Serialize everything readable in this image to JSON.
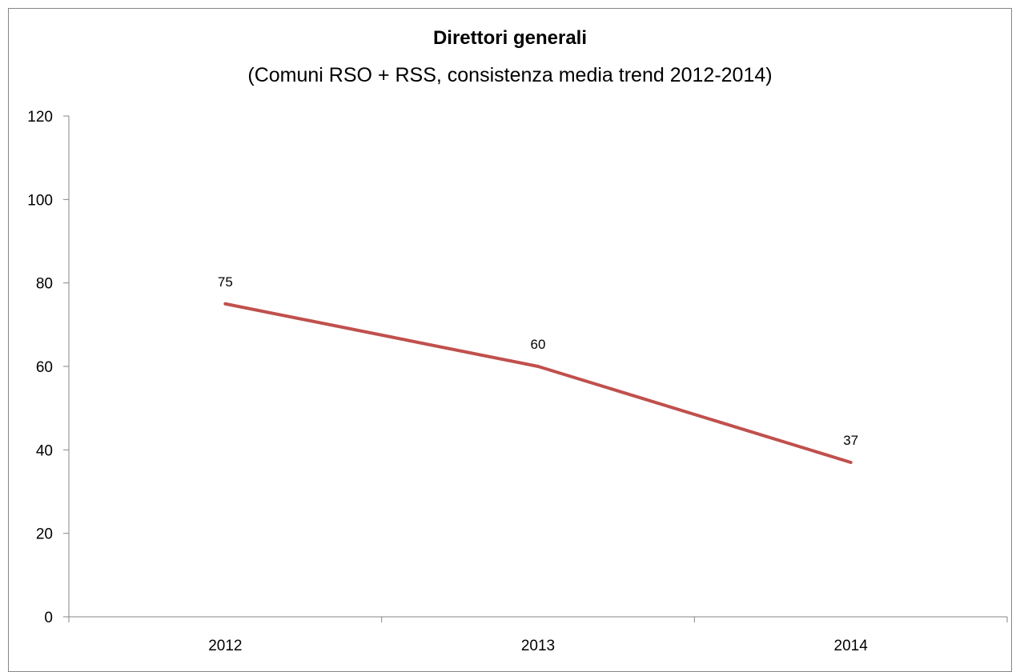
{
  "chart_data": {
    "type": "line",
    "title": "Direttori generali",
    "subtitle": "(Comuni RSO + RSS, consistenza media trend 2012-2014)",
    "xlabel": "",
    "ylabel": "",
    "categories": [
      "2012",
      "2013",
      "2014"
    ],
    "series": [
      {
        "values": [
          75,
          60,
          37
        ],
        "color": "#C0504D"
      }
    ],
    "data_labels": [
      "75",
      "60",
      "37"
    ],
    "ylim": [
      0,
      120
    ],
    "yticks": [
      0,
      20,
      40,
      60,
      80,
      100,
      120
    ],
    "ytick_labels": [
      "0",
      "20",
      "40",
      "60",
      "80",
      "100",
      "120"
    ],
    "grid": false,
    "legend": "none"
  }
}
